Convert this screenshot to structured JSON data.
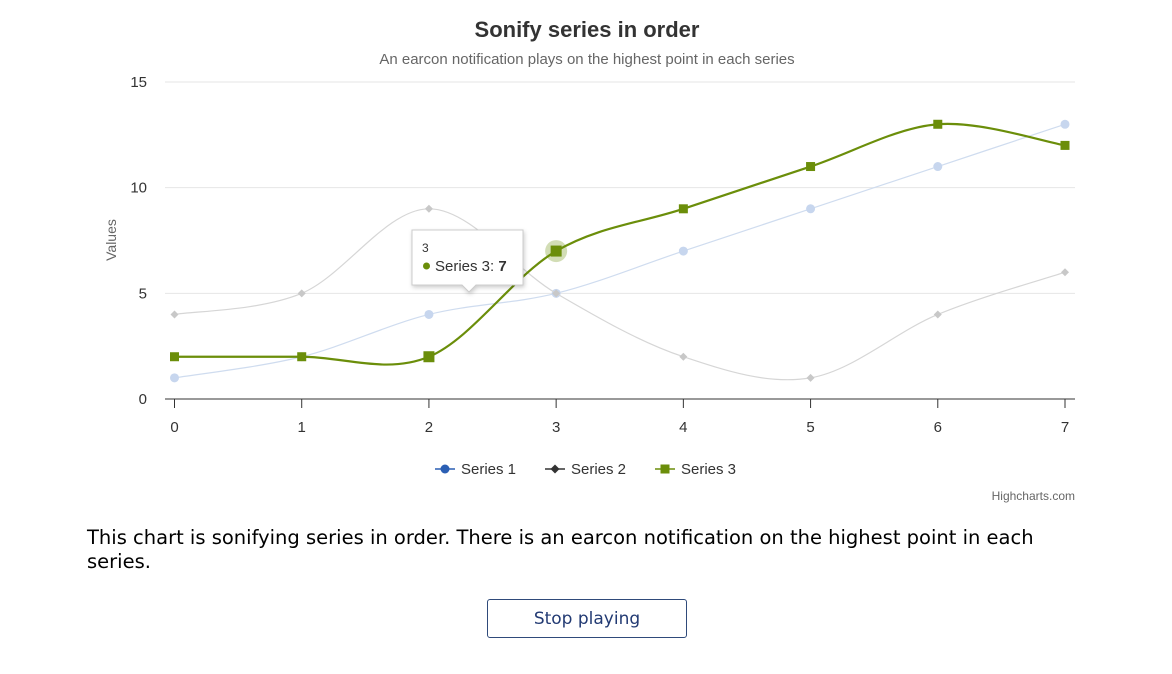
{
  "chart_data": {
    "type": "line",
    "title": "Sonify series in order",
    "subtitle": "An earcon notification plays on the highest point in each series",
    "xlabel": "",
    "ylabel": "Values",
    "x": [
      0,
      1,
      2,
      3,
      4,
      5,
      6,
      7
    ],
    "ylim": [
      0,
      15
    ],
    "yticks": [
      0,
      5,
      10,
      15
    ],
    "grid": true,
    "legend_position": "bottom-center",
    "series": [
      {
        "name": "Series 1",
        "values": [
          1,
          2,
          4,
          5,
          7,
          9,
          11,
          13
        ],
        "color": "#2b5fb4",
        "marker": "circle",
        "state": "dimmed"
      },
      {
        "name": "Series 2",
        "values": [
          4,
          5,
          9,
          5,
          2,
          1,
          4,
          6
        ],
        "color": "#333333",
        "marker": "diamond",
        "state": "dimmed"
      },
      {
        "name": "Series 3",
        "values": [
          2,
          2,
          2,
          7,
          9,
          11,
          13,
          12
        ],
        "color": "#6b8e0a",
        "marker": "square",
        "state": "active"
      }
    ],
    "tooltip": {
      "header": "3",
      "series": "Series 3",
      "value": "7",
      "point_index": 3
    }
  },
  "credits": "Highcharts.com",
  "description": "This chart is sonifying series in order. There is an earcon notification on the highest point in each series.",
  "controls": {
    "stop_label": "Stop playing"
  }
}
